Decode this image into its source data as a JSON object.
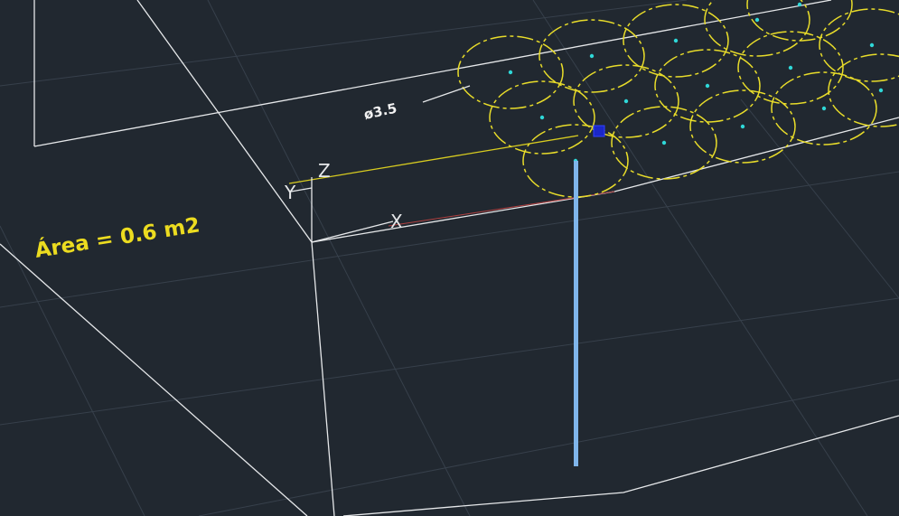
{
  "canvas": {
    "background": "#212830",
    "grid_color": "#37404b",
    "wire_color": "#e6e8ea",
    "pile_color": "#e8dc2a",
    "center_color": "#2fd8d8",
    "cursor_color": "#7fb5ea",
    "grip_color": "#1b27c8"
  },
  "annotations": {
    "area_label": "Área = 0.6 m2",
    "diameter_label": "ø3.5"
  },
  "ucs": {
    "z_label": "Z",
    "y_label": "Y",
    "x_label": "X"
  },
  "icons": {
    "ucs": "ucs-axis-icon",
    "grip": "grip-square-icon",
    "cursor": "crosshair-cursor-icon"
  }
}
